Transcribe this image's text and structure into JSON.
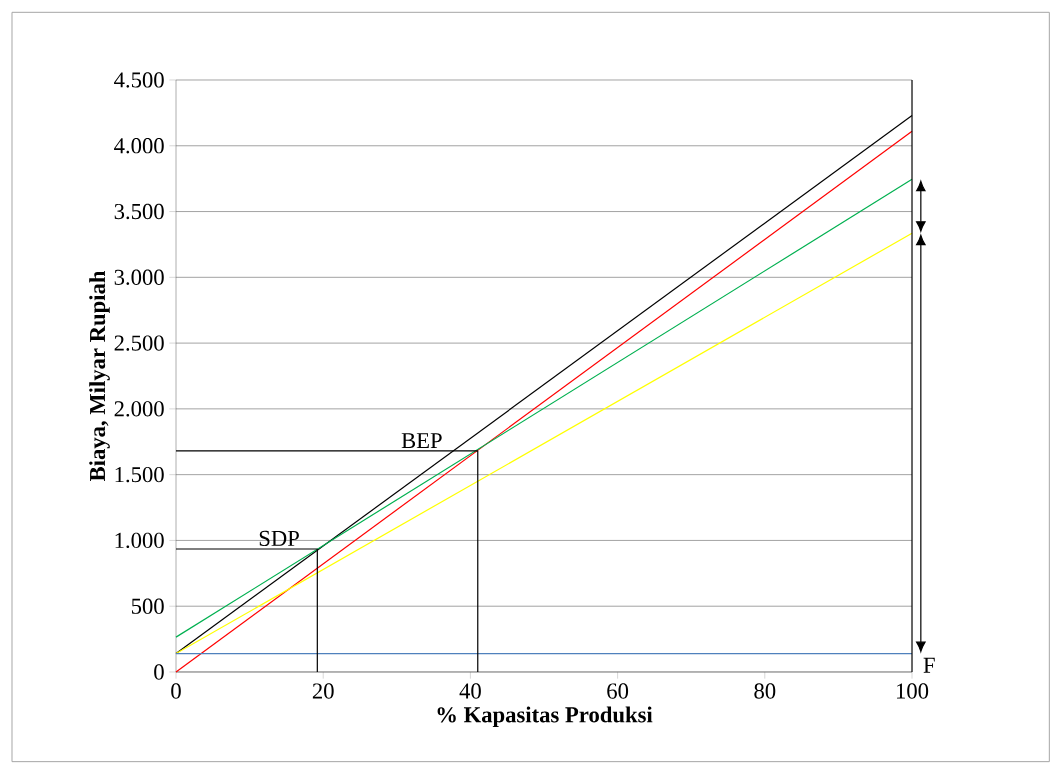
{
  "chart_data": {
    "type": "line",
    "xlabel": "% Kapasitas Produksi",
    "ylabel": "Biaya, Milyar Rupiah",
    "xlim": [
      0,
      100
    ],
    "xticks": [
      0,
      20,
      40,
      60,
      80,
      100
    ],
    "ylim": [
      0,
      4500
    ],
    "yticks": [
      0,
      500,
      {
        "value": 1000,
        "label": "1.000"
      },
      {
        "value": 1500,
        "label": "1.500"
      },
      {
        "value": 2000,
        "label": "2.000"
      },
      {
        "value": 2500,
        "label": "2.500"
      },
      {
        "value": 3000,
        "label": "3.000"
      },
      {
        "value": 3500,
        "label": "3.500"
      },
      {
        "value": 4000,
        "label": "4.000"
      },
      {
        "value": 4500,
        "label": "4.500"
      }
    ],
    "grid": "y",
    "legend": false,
    "marker": "none",
    "line_style": "solid",
    "series": [
      {
        "color": "#000000",
        "x": [
          0,
          100
        ],
        "values": [
          140,
          4230
        ]
      },
      {
        "color": "#ff0000",
        "x": [
          0,
          100
        ],
        "values": [
          0,
          4110
        ]
      },
      {
        "color": "#00b050",
        "x": [
          0,
          100
        ],
        "values": [
          265,
          3745
        ]
      },
      {
        "color": "#ffff00",
        "x": [
          0,
          100
        ],
        "values": [
          140,
          3335
        ]
      },
      {
        "color": "#4f81bd",
        "x": [
          0,
          100
        ],
        "values": [
          140,
          140
        ]
      },
      {
        "color": "#000000",
        "x": [
          0,
          19.2,
          19.2
        ],
        "values": [
          935,
          935,
          0
        ]
      },
      {
        "color": "#000000",
        "x": [
          0,
          41,
          41
        ],
        "values": [
          1680,
          1680,
          0
        ]
      }
    ],
    "ref_lines": [
      {
        "axis": "x",
        "value": 100,
        "color": "#000000"
      }
    ],
    "annotations": [
      {
        "text": "SDP",
        "x": 14,
        "y": 935
      },
      {
        "text": "BEP",
        "x": 33.4,
        "y": 1680
      },
      {
        "text": "F",
        "x": 100,
        "y": 140
      }
    ]
  }
}
